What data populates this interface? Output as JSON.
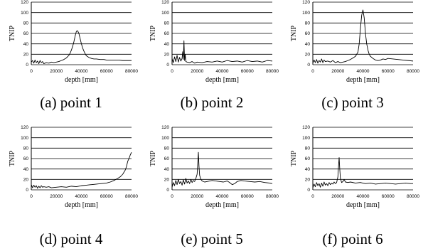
{
  "chart_data": [
    {
      "type": "line",
      "caption": "(a) point 1",
      "xlabel": "depth [mm]",
      "ylabel": "TNIP",
      "xlim": [
        0,
        80000
      ],
      "ylim": [
        0,
        120
      ],
      "x_ticks": [
        "0",
        "20000",
        "40000",
        "60000",
        "80000"
      ],
      "y_ticks": [
        "0",
        "20",
        "40",
        "60",
        "80",
        "100",
        "120"
      ],
      "grid": true,
      "series": [
        {
          "x": [
            0,
            1000,
            2000,
            3000,
            4000,
            5000,
            6000,
            7000,
            8000,
            9000,
            10000,
            12000,
            14000,
            16000,
            18000,
            20000,
            22000,
            24000,
            26000,
            28000,
            30000,
            31000,
            32000,
            33000,
            34000,
            35000,
            36000,
            37000,
            38000,
            39000,
            40000,
            41000,
            42000,
            43000,
            44000,
            46000,
            48000,
            50000,
            52000,
            55000,
            58000,
            60000,
            63000,
            66000,
            70000,
            73000,
            76000,
            80000
          ],
          "y": [
            5,
            8,
            3,
            9,
            4,
            7,
            2,
            8,
            4,
            6,
            2,
            4,
            3,
            5,
            4,
            5,
            6,
            8,
            10,
            13,
            18,
            22,
            28,
            35,
            44,
            55,
            64,
            65,
            60,
            50,
            40,
            32,
            26,
            21,
            17,
            14,
            12,
            11,
            11,
            10,
            10,
            9,
            9,
            9,
            9,
            8,
            8,
            8
          ]
        }
      ]
    },
    {
      "type": "line",
      "caption": "(b) point 2",
      "xlabel": "depth [mm]",
      "ylabel": "TNIP",
      "xlim": [
        0,
        80000
      ],
      "ylim": [
        0,
        120
      ],
      "x_ticks": [
        "0",
        "20000",
        "40000",
        "60000",
        "80000"
      ],
      "y_ticks": [
        "0",
        "20",
        "40",
        "60",
        "80",
        "100",
        "120"
      ],
      "grid": true,
      "series": [
        {
          "x": [
            0,
            1000,
            2000,
            3000,
            4000,
            5000,
            6000,
            7000,
            8000,
            8500,
            9000,
            9500,
            10000,
            10500,
            11000,
            12000,
            14000,
            16000,
            18000,
            20000,
            24000,
            28000,
            32000,
            36000,
            40000,
            44000,
            48000,
            52000,
            56000,
            60000,
            64000,
            68000,
            72000,
            76000,
            80000
          ],
          "y": [
            12,
            4,
            15,
            6,
            18,
            5,
            14,
            7,
            12,
            25,
            10,
            46,
            8,
            20,
            6,
            5,
            4,
            6,
            3,
            5,
            4,
            6,
            5,
            7,
            5,
            8,
            6,
            7,
            5,
            8,
            6,
            7,
            5,
            8,
            7
          ]
        }
      ]
    },
    {
      "type": "line",
      "caption": "(c) point 3",
      "xlabel": "depth [mm]",
      "ylabel": "TNIP",
      "xlim": [
        0,
        80000
      ],
      "ylim": [
        0,
        120
      ],
      "x_ticks": [
        "0",
        "20000",
        "40000",
        "60000",
        "80000"
      ],
      "y_ticks": [
        "0",
        "20",
        "40",
        "60",
        "80",
        "100",
        "120"
      ],
      "grid": true,
      "series": [
        {
          "x": [
            0,
            1000,
            2000,
            3000,
            4000,
            5000,
            6000,
            7000,
            8000,
            9000,
            10000,
            12000,
            14000,
            16000,
            18000,
            20000,
            22000,
            24000,
            26000,
            28000,
            30000,
            32000,
            34000,
            36000,
            37000,
            38000,
            39000,
            40000,
            41000,
            42000,
            43000,
            44000,
            45000,
            46000,
            48000,
            50000,
            52000,
            54000,
            56000,
            58000,
            60000,
            64000,
            68000,
            72000,
            76000,
            80000
          ],
          "y": [
            3,
            9,
            4,
            10,
            3,
            8,
            5,
            11,
            4,
            9,
            6,
            7,
            5,
            8,
            4,
            6,
            4,
            5,
            6,
            8,
            10,
            13,
            16,
            24,
            40,
            70,
            95,
            105,
            90,
            60,
            40,
            28,
            20,
            16,
            12,
            9,
            8,
            9,
            11,
            10,
            12,
            11,
            10,
            9,
            8,
            7
          ]
        }
      ]
    },
    {
      "type": "line",
      "caption": "(d) point 4",
      "xlabel": "depth [mm]",
      "ylabel": "TNIP",
      "xlim": [
        0,
        80000
      ],
      "ylim": [
        0,
        120
      ],
      "x_ticks": [
        "0",
        "20000",
        "40000",
        "60000",
        "80000"
      ],
      "y_ticks": [
        "0",
        "20",
        "40",
        "60",
        "80",
        "100",
        "120"
      ],
      "grid": true,
      "series": [
        {
          "x": [
            0,
            1000,
            2000,
            3000,
            4000,
            5000,
            6000,
            7000,
            8000,
            9000,
            10000,
            12000,
            14000,
            16000,
            20000,
            24000,
            28000,
            32000,
            36000,
            40000,
            44000,
            48000,
            52000,
            56000,
            60000,
            63000,
            66000,
            69000,
            71000,
            73000,
            75000,
            76000,
            77000,
            78000,
            79000,
            80000
          ],
          "y": [
            10,
            4,
            9,
            5,
            8,
            3,
            7,
            4,
            8,
            5,
            6,
            5,
            6,
            4,
            5,
            6,
            5,
            7,
            6,
            8,
            9,
            10,
            11,
            12,
            13,
            15,
            18,
            22,
            25,
            30,
            38,
            45,
            55,
            60,
            67,
            72
          ]
        }
      ]
    },
    {
      "type": "line",
      "caption": "(e) point 5",
      "xlabel": "depth [mm]",
      "ylabel": "TNIP",
      "xlim": [
        0,
        80000
      ],
      "ylim": [
        0,
        120
      ],
      "x_ticks": [
        "0",
        "20000",
        "40000",
        "60000",
        "80000"
      ],
      "y_ticks": [
        "0",
        "20",
        "40",
        "60",
        "80",
        "100",
        "120"
      ],
      "grid": true,
      "series": [
        {
          "x": [
            0,
            1000,
            2000,
            3000,
            4000,
            5000,
            6000,
            7000,
            8000,
            9000,
            10000,
            11000,
            12000,
            13000,
            14000,
            15000,
            16000,
            17000,
            18000,
            19000,
            20000,
            20500,
            21000,
            21500,
            22000,
            23000,
            24000,
            25000,
            26000,
            28000,
            30000,
            32000,
            35000,
            38000,
            41000,
            44000,
            46000,
            48000,
            50000,
            52000,
            55000,
            58000,
            62000,
            66000,
            70000,
            74000,
            78000,
            80000
          ],
          "y": [
            5,
            14,
            8,
            18,
            10,
            20,
            12,
            16,
            9,
            19,
            11,
            22,
            13,
            17,
            12,
            20,
            14,
            18,
            16,
            22,
            30,
            50,
            72,
            45,
            28,
            20,
            17,
            16,
            15,
            16,
            17,
            18,
            17,
            16,
            15,
            17,
            14,
            10,
            12,
            16,
            18,
            17,
            16,
            15,
            16,
            14,
            13,
            12
          ]
        }
      ]
    },
    {
      "type": "line",
      "caption": "(f) point 6",
      "xlabel": "depth [mm]",
      "ylabel": "TNIP",
      "xlim": [
        0,
        80000
      ],
      "ylim": [
        0,
        120
      ],
      "x_ticks": [
        "0",
        "20000",
        "40000",
        "60000",
        "80000"
      ],
      "y_ticks": [
        "0",
        "20",
        "40",
        "60",
        "80",
        "100",
        "120"
      ],
      "grid": true,
      "series": [
        {
          "x": [
            0,
            1000,
            2000,
            3000,
            4000,
            5000,
            6000,
            7000,
            8000,
            9000,
            10000,
            11000,
            12000,
            13000,
            14000,
            15000,
            16000,
            17000,
            18000,
            19000,
            20000,
            20500,
            21000,
            21500,
            22000,
            23000,
            24000,
            25000,
            26000,
            28000,
            30000,
            34000,
            38000,
            42000,
            46000,
            50000,
            54000,
            58000,
            62000,
            66000,
            70000,
            74000,
            78000,
            80000
          ],
          "y": [
            4,
            11,
            6,
            14,
            8,
            12,
            5,
            13,
            7,
            15,
            9,
            12,
            8,
            14,
            10,
            13,
            11,
            15,
            12,
            14,
            25,
            45,
            62,
            40,
            22,
            14,
            16,
            20,
            15,
            14,
            15,
            13,
            14,
            12,
            13,
            11,
            12,
            13,
            12,
            11,
            12,
            13,
            12,
            12
          ]
        }
      ]
    }
  ]
}
